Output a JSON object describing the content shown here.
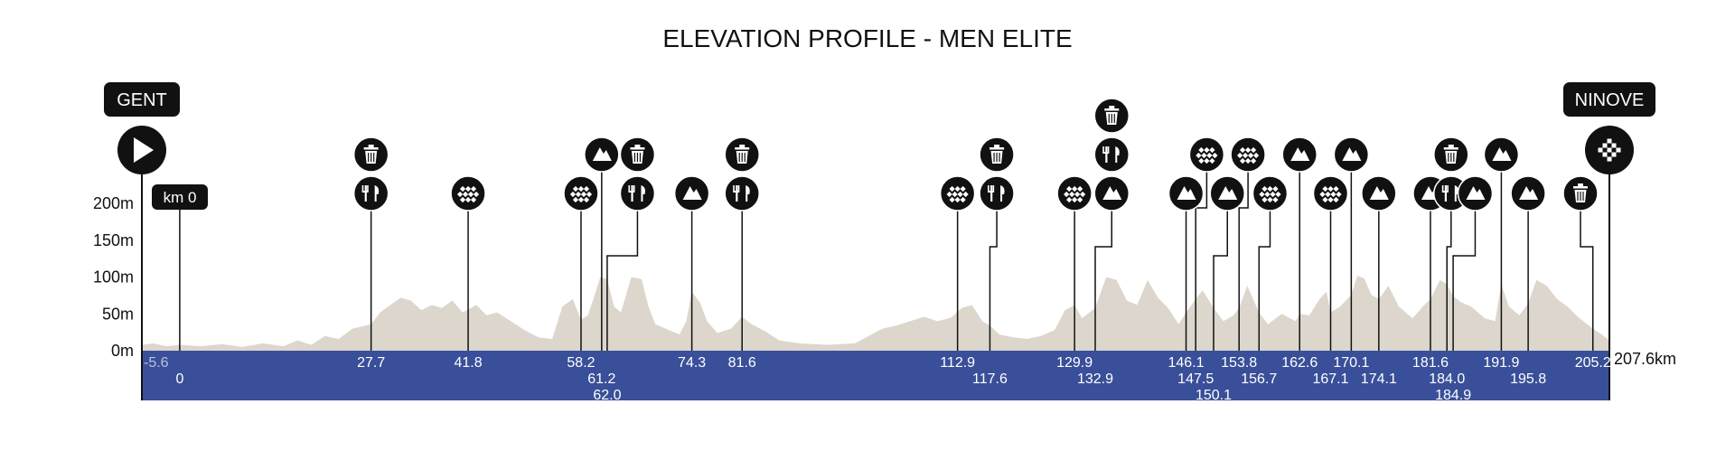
{
  "chart_data": {
    "type": "area",
    "title": "ELEVATION PROFILE - MEN ELITE",
    "y_ticks": [
      "0m",
      "50m",
      "100m",
      "150m",
      "200m"
    ],
    "y_tick_values": [
      0,
      50,
      100,
      150,
      200
    ],
    "ylim": [
      0,
      200
    ],
    "xlim": [
      -5.6,
      207.6
    ],
    "end_label": "207.6km",
    "start_city": "GENT",
    "finish_city": "NINOVE",
    "km0_label": "km 0",
    "km0_position": -0.1,
    "colors": {
      "profile_fill": "#dcd6cc",
      "band": "#3a4f99",
      "markers": "#111111"
    },
    "elevation": [
      [
        -5.6,
        8
      ],
      [
        -4,
        10
      ],
      [
        -2,
        6
      ],
      [
        0,
        8
      ],
      [
        3,
        6
      ],
      [
        6,
        9
      ],
      [
        9,
        5
      ],
      [
        12,
        10
      ],
      [
        15,
        6
      ],
      [
        17,
        14
      ],
      [
        19,
        8
      ],
      [
        21,
        20
      ],
      [
        23,
        16
      ],
      [
        25,
        30
      ],
      [
        27.7,
        36
      ],
      [
        29,
        52
      ],
      [
        30.5,
        62
      ],
      [
        32,
        72
      ],
      [
        33.5,
        68
      ],
      [
        35,
        55
      ],
      [
        36.5,
        62
      ],
      [
        38,
        58
      ],
      [
        39.5,
        68
      ],
      [
        41,
        52
      ],
      [
        43,
        62
      ],
      [
        44.5,
        48
      ],
      [
        46,
        52
      ],
      [
        48,
        40
      ],
      [
        50,
        28
      ],
      [
        52,
        18
      ],
      [
        54,
        16
      ],
      [
        55.5,
        60
      ],
      [
        57,
        70
      ],
      [
        58.2,
        42
      ],
      [
        59.2,
        48
      ],
      [
        60,
        70
      ],
      [
        61,
        100
      ],
      [
        62,
        97
      ],
      [
        63,
        60
      ],
      [
        64,
        52
      ],
      [
        65.5,
        100
      ],
      [
        67,
        97
      ],
      [
        68,
        60
      ],
      [
        69,
        36
      ],
      [
        71,
        28
      ],
      [
        72.5,
        22
      ],
      [
        73.5,
        40
      ],
      [
        74.3,
        80
      ],
      [
        75.5,
        65
      ],
      [
        76.5,
        40
      ],
      [
        78,
        24
      ],
      [
        80,
        30
      ],
      [
        81.6,
        46
      ],
      [
        83,
        36
      ],
      [
        85,
        26
      ],
      [
        87,
        14
      ],
      [
        90,
        10
      ],
      [
        94,
        8
      ],
      [
        98,
        10
      ],
      [
        100,
        20
      ],
      [
        102,
        30
      ],
      [
        104,
        34
      ],
      [
        106,
        40
      ],
      [
        108,
        46
      ],
      [
        110,
        40
      ],
      [
        112,
        45
      ],
      [
        113.5,
        58
      ],
      [
        115,
        62
      ],
      [
        116.5,
        40
      ],
      [
        117.6,
        34
      ],
      [
        119,
        22
      ],
      [
        121,
        18
      ],
      [
        123,
        16
      ],
      [
        125,
        20
      ],
      [
        127,
        28
      ],
      [
        128.5,
        55
      ],
      [
        129.9,
        62
      ],
      [
        131,
        44
      ],
      [
        132.9,
        58
      ],
      [
        134.5,
        100
      ],
      [
        136,
        96
      ],
      [
        137.5,
        68
      ],
      [
        139,
        62
      ],
      [
        140.5,
        96
      ],
      [
        142,
        72
      ],
      [
        143.5,
        58
      ],
      [
        145,
        36
      ],
      [
        146.1,
        52
      ],
      [
        147.5,
        70
      ],
      [
        148.5,
        82
      ],
      [
        150.1,
        58
      ],
      [
        151.5,
        40
      ],
      [
        153,
        48
      ],
      [
        153.8,
        58
      ],
      [
        155,
        88
      ],
      [
        156.7,
        52
      ],
      [
        158,
        36
      ],
      [
        160,
        50
      ],
      [
        162,
        40
      ],
      [
        162.6,
        50
      ],
      [
        164,
        48
      ],
      [
        165.5,
        70
      ],
      [
        166.5,
        80
      ],
      [
        167.1,
        52
      ],
      [
        168.5,
        60
      ],
      [
        170.1,
        76
      ],
      [
        171,
        102
      ],
      [
        172,
        98
      ],
      [
        173,
        76
      ],
      [
        174.1,
        70
      ],
      [
        175.5,
        88
      ],
      [
        177,
        60
      ],
      [
        179,
        44
      ],
      [
        180.5,
        60
      ],
      [
        181.6,
        70
      ],
      [
        183,
        96
      ],
      [
        184,
        90
      ],
      [
        184.9,
        74
      ],
      [
        186,
        66
      ],
      [
        187.5,
        60
      ],
      [
        189.5,
        44
      ],
      [
        191,
        40
      ],
      [
        191.9,
        90
      ],
      [
        193,
        60
      ],
      [
        194.5,
        48
      ],
      [
        195.8,
        64
      ],
      [
        197,
        96
      ],
      [
        198.5,
        88
      ],
      [
        200,
        70
      ],
      [
        201.5,
        60
      ],
      [
        203,
        46
      ],
      [
        205.2,
        30
      ],
      [
        206.5,
        22
      ],
      [
        207.6,
        14
      ]
    ],
    "points": [
      {
        "km": -5.6,
        "label": "-5.6",
        "row": 0,
        "icons": [],
        "muted": true
      },
      {
        "km": -0.1,
        "label": "0",
        "row": 1,
        "icons": []
      },
      {
        "km": 27.7,
        "label": "27.7",
        "row": 0,
        "icons": [
          "food",
          "trash"
        ]
      },
      {
        "km": 41.8,
        "label": "41.8",
        "row": 0,
        "icons": [
          "cobbles"
        ]
      },
      {
        "km": 58.2,
        "label": "58.2",
        "row": 0,
        "icons": [
          "cobbles"
        ]
      },
      {
        "km": 61.2,
        "label": "61.2",
        "row": 1,
        "icons": [
          "climb"
        ],
        "icon_row": 1
      },
      {
        "km": 62.0,
        "label": "62.0",
        "row": 2,
        "icons": [
          "food",
          "trash"
        ],
        "anchor_km": 66.4
      },
      {
        "km": 74.3,
        "label": "74.3",
        "row": 0,
        "icons": [
          "climb"
        ]
      },
      {
        "km": 81.6,
        "label": "81.6",
        "row": 0,
        "icons": [
          "food",
          "trash"
        ]
      },
      {
        "km": 112.9,
        "label": "112.9",
        "row": 0,
        "icons": [
          "cobbles"
        ]
      },
      {
        "km": 117.6,
        "label": "117.6",
        "row": 1,
        "icons": [
          "food",
          "trash"
        ],
        "anchor_km": 118.6
      },
      {
        "km": 129.9,
        "label": "129.9",
        "row": 0,
        "icons": [
          "cobbles"
        ]
      },
      {
        "km": 132.9,
        "label": "132.9",
        "row": 1,
        "icons": [
          "climb",
          "food",
          "trash"
        ],
        "anchor_km": 135.3
      },
      {
        "km": 146.1,
        "label": "146.1",
        "row": 0,
        "icons": [
          "climb"
        ]
      },
      {
        "km": 147.5,
        "label": "147.5",
        "row": 1,
        "icons": [
          "cobbles"
        ],
        "icon_row": 1,
        "anchor_km": 149.1
      },
      {
        "km": 150.1,
        "label": "150.1",
        "row": 2,
        "icons": [
          "climb"
        ],
        "anchor_km": 152.1
      },
      {
        "km": 153.8,
        "label": "153.8",
        "row": 0,
        "icons": [
          "cobbles"
        ],
        "icon_row": 1,
        "anchor_km": 155.1
      },
      {
        "km": 156.7,
        "label": "156.7",
        "row": 1,
        "icons": [
          "cobbles"
        ],
        "anchor_km": 158.3
      },
      {
        "km": 162.6,
        "label": "162.6",
        "row": 0,
        "icons": [
          "climb"
        ],
        "icon_row": 1
      },
      {
        "km": 167.1,
        "label": "167.1",
        "row": 1,
        "icons": [
          "cobbles"
        ]
      },
      {
        "km": 170.1,
        "label": "170.1",
        "row": 0,
        "icons": [
          "climb"
        ],
        "icon_row": 1
      },
      {
        "km": 174.1,
        "label": "174.1",
        "row": 1,
        "icons": [
          "climb"
        ]
      },
      {
        "km": 181.6,
        "label": "181.6",
        "row": 0,
        "icons": [
          "climb"
        ]
      },
      {
        "km": 184.0,
        "label": "184.0",
        "row": 1,
        "icons": [
          "food",
          "trash"
        ],
        "anchor_km": 184.6
      },
      {
        "km": 184.9,
        "label": "184.9",
        "row": 2,
        "icons": [
          "climb"
        ],
        "anchor_km": 188.1
      },
      {
        "km": 191.9,
        "label": "191.9",
        "row": 0,
        "icons": [
          "climb"
        ],
        "icon_row": 1
      },
      {
        "km": 195.8,
        "label": "195.8",
        "row": 1,
        "icons": [
          "climb"
        ]
      },
      {
        "km": 205.2,
        "label": "205.2",
        "row": 0,
        "icons": [
          "trash"
        ],
        "anchor_km": 203.4
      },
      {
        "km": 207.6,
        "label": "",
        "row": 0,
        "icons": []
      }
    ]
  }
}
